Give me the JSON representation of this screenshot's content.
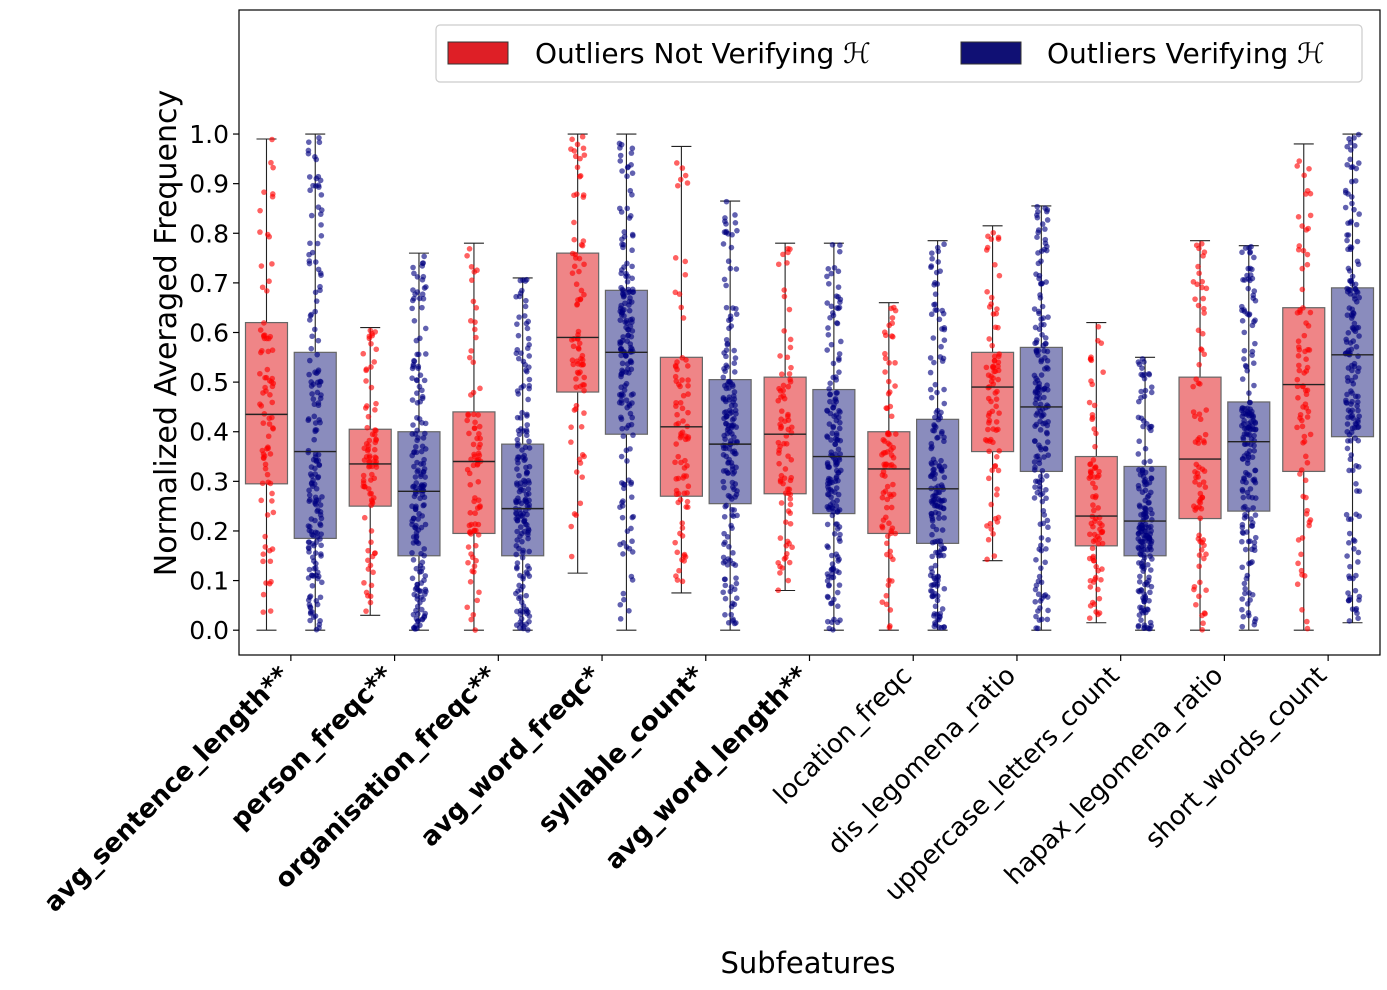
{
  "chart_data": {
    "type": "boxplot",
    "xlabel": "Subfeatures",
    "ylabel": "Normalized Averaged Frequency",
    "ylim": [
      -0.05,
      1.25
    ],
    "yticks": [
      "0.0",
      "0.1",
      "0.2",
      "0.3",
      "0.4",
      "0.5",
      "0.6",
      "0.7",
      "0.8",
      "0.9",
      "1.0"
    ],
    "legend_position": "top-right",
    "categories": [
      {
        "label": "avg_sentence_length**",
        "bold": true
      },
      {
        "label": "person_freqc**",
        "bold": true
      },
      {
        "label": "organisation_freqc**",
        "bold": true
      },
      {
        "label": "avg_word_freqc*",
        "bold": true
      },
      {
        "label": "syllable_count*",
        "bold": true
      },
      {
        "label": "avg_word_length**",
        "bold": true
      },
      {
        "label": "location_freqc",
        "bold": false
      },
      {
        "label": "dis_legomena_ratio",
        "bold": false
      },
      {
        "label": "uppercase_letters_count",
        "bold": false
      },
      {
        "label": "hapax_legomena_ratio",
        "bold": false
      },
      {
        "label": "short_words_count",
        "bold": false
      }
    ],
    "series": [
      {
        "name": "Outliers Not Verifying ℋ",
        "box_color": "#ef8587",
        "edge_color": "#666666",
        "point_color": "#ff0000",
        "legend_color": "#de1f26",
        "boxes": [
          {
            "whislo": 0.0,
            "q1": 0.295,
            "med": 0.435,
            "q3": 0.62,
            "whishi": 0.99
          },
          {
            "whislo": 0.03,
            "q1": 0.25,
            "med": 0.335,
            "q3": 0.405,
            "whishi": 0.61
          },
          {
            "whislo": 0.0,
            "q1": 0.195,
            "med": 0.34,
            "q3": 0.44,
            "whishi": 0.78
          },
          {
            "whislo": 0.115,
            "q1": 0.48,
            "med": 0.59,
            "q3": 0.76,
            "whishi": 1.0
          },
          {
            "whislo": 0.075,
            "q1": 0.27,
            "med": 0.41,
            "q3": 0.55,
            "whishi": 0.975
          },
          {
            "whislo": 0.08,
            "q1": 0.275,
            "med": 0.395,
            "q3": 0.51,
            "whishi": 0.78
          },
          {
            "whislo": 0.0,
            "q1": 0.195,
            "med": 0.325,
            "q3": 0.4,
            "whishi": 0.66
          },
          {
            "whislo": 0.14,
            "q1": 0.36,
            "med": 0.49,
            "q3": 0.56,
            "whishi": 0.815
          },
          {
            "whislo": 0.015,
            "q1": 0.17,
            "med": 0.23,
            "q3": 0.35,
            "whishi": 0.62
          },
          {
            "whislo": 0.0,
            "q1": 0.225,
            "med": 0.345,
            "q3": 0.51,
            "whishi": 0.785
          },
          {
            "whislo": 0.0,
            "q1": 0.32,
            "med": 0.495,
            "q3": 0.65,
            "whishi": 0.98
          }
        ]
      },
      {
        "name": "Outliers Verifying ℋ",
        "box_color": "#8a8cbd",
        "edge_color": "#666666",
        "point_color": "#00007f",
        "legend_color": "#101074",
        "boxes": [
          {
            "whislo": 0.0,
            "q1": 0.185,
            "med": 0.36,
            "q3": 0.56,
            "whishi": 1.0
          },
          {
            "whislo": 0.0,
            "q1": 0.15,
            "med": 0.28,
            "q3": 0.4,
            "whishi": 0.76
          },
          {
            "whislo": 0.0,
            "q1": 0.15,
            "med": 0.245,
            "q3": 0.375,
            "whishi": 0.71
          },
          {
            "whislo": 0.0,
            "q1": 0.395,
            "med": 0.56,
            "q3": 0.685,
            "whishi": 1.0
          },
          {
            "whislo": 0.0,
            "q1": 0.255,
            "med": 0.375,
            "q3": 0.505,
            "whishi": 0.865
          },
          {
            "whislo": 0.0,
            "q1": 0.235,
            "med": 0.35,
            "q3": 0.485,
            "whishi": 0.78
          },
          {
            "whislo": 0.0,
            "q1": 0.175,
            "med": 0.285,
            "q3": 0.425,
            "whishi": 0.785
          },
          {
            "whislo": 0.0,
            "q1": 0.32,
            "med": 0.45,
            "q3": 0.57,
            "whishi": 0.855
          },
          {
            "whislo": 0.0,
            "q1": 0.15,
            "med": 0.22,
            "q3": 0.33,
            "whishi": 0.55
          },
          {
            "whislo": 0.0,
            "q1": 0.24,
            "med": 0.38,
            "q3": 0.46,
            "whishi": 0.775
          },
          {
            "whislo": 0.015,
            "q1": 0.39,
            "med": 0.555,
            "q3": 0.69,
            "whishi": 1.0
          }
        ]
      }
    ]
  }
}
